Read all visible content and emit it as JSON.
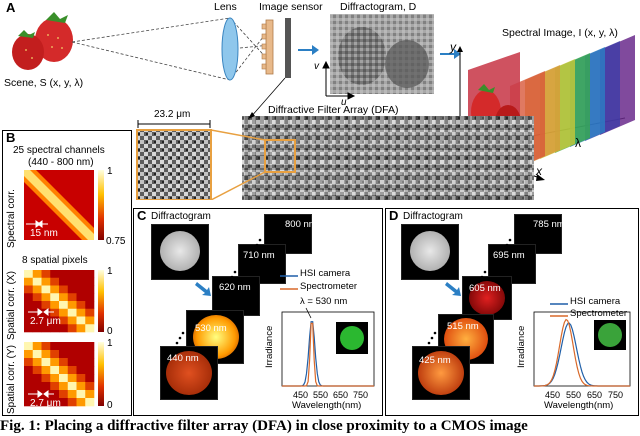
{
  "panel_a": {
    "letter": "A",
    "scene_label": "Scene, S (x, y, λ)",
    "lens_label": "Lens",
    "sensor_label": "Image sensor",
    "diffractogram_label": "Diffractogram, D",
    "v_label": "v",
    "u_label": "u",
    "spectral_image_label": "Spectral Image, I (x, y, λ)",
    "y_axis": "y",
    "x_axis": "x",
    "lambda_axis": "λ",
    "dfa_label": "Diffractive Filter Array (DFA)",
    "scale_label": "23.2 μm"
  },
  "panel_b": {
    "letter": "B",
    "title_line1": "25 spectral channels",
    "title_line2": "(440 - 800 nm)",
    "ylabel_spectral": "Spectral corr.",
    "nm_label": "15 nm",
    "cb1_max": "1",
    "cb1_min": "0.75",
    "title_spatial": "8 spatial pixels",
    "ylabel_x": "Spatial corr. (X)",
    "um_label_x": "2.7 μm",
    "cb2_max": "1",
    "cb2_min": "0",
    "ylabel_y": "Spatial corr. (Y)",
    "um_label_y": "2.7 μm",
    "cb3_max": "1",
    "cb3_min": "0"
  },
  "panel_c": {
    "letter": "C",
    "diffractogram_label": "Diffractogram",
    "thumb_labels": [
      "800 nm",
      "710 nm",
      "620 nm",
      "530 nm",
      "440 nm"
    ],
    "lambda_annot": "λ = 530 nm",
    "legend": [
      "HSI camera",
      "Spectrometer"
    ],
    "ylabel": "Irradiance",
    "xlabel": "Wavelength(nm)",
    "xticks": [
      "450",
      "550",
      "650",
      "750"
    ],
    "colors": {
      "hsi": "#1f5fa8",
      "spectrometer": "#d9692a",
      "dot": "#2bb830"
    }
  },
  "panel_d": {
    "letter": "D",
    "diffractogram_label": "Diffractogram",
    "thumb_labels": [
      "785 nm",
      "695 nm",
      "605 nm",
      "515 nm",
      "425 nm"
    ],
    "legend": [
      "HSI camera",
      "Spectrometer"
    ],
    "ylabel": "Irradiance",
    "xlabel": "Wavelength(nm)",
    "xticks": [
      "450",
      "550",
      "650",
      "750"
    ],
    "colors": {
      "hsi": "#1f5fa8",
      "spectrometer": "#d9692a",
      "dot": "#3aa33a"
    }
  },
  "caption": "Fig. 1: Placing a diffractive filter array (DFA) in close proximity to a CMOS image"
}
